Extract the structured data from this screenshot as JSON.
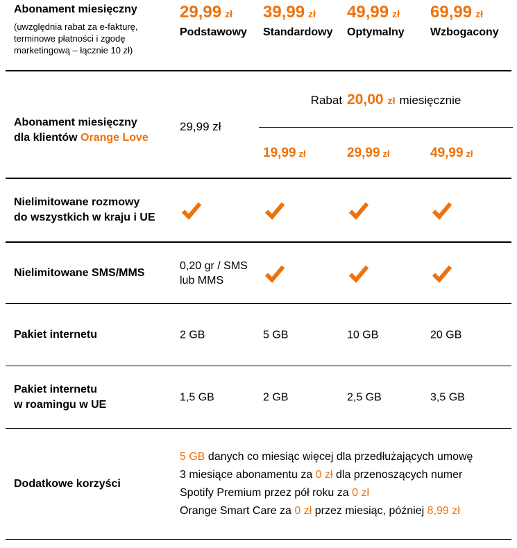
{
  "colors": {
    "accent": "#ee720c",
    "text": "#000000",
    "divider": "#000000",
    "background": "#ffffff"
  },
  "header": {
    "label": {
      "title": "Abonament miesięczny",
      "note": "(uwzględnia rabat za e-fakturę, terminowe płatności i zgodę marketingową – łącznie 10 zł)"
    },
    "plans": [
      {
        "price": "29,99",
        "currency": "zł",
        "name": "Podstawowy"
      },
      {
        "price": "39,99",
        "currency": "zł",
        "name": "Standardowy"
      },
      {
        "price": "49,99",
        "currency": "zł",
        "name": "Optymalny"
      },
      {
        "price": "69,99",
        "currency": "zł",
        "name": "Wzbogacony"
      }
    ]
  },
  "orange_love": {
    "label_line1": "Abonament miesięczny",
    "label_line2_prefix": "dla klientów ",
    "label_line2_highlight": "Orange Love",
    "base_price": "29,99 zł",
    "rabat": {
      "prefix": "Rabat",
      "amount": "20,00",
      "currency": "zł",
      "suffix": "miesięcznie"
    },
    "discounted": [
      {
        "price": "19,99",
        "currency": "zł"
      },
      {
        "price": "29,99",
        "currency": "zł"
      },
      {
        "price": "49,99",
        "currency": "zł"
      }
    ]
  },
  "features": [
    {
      "label": "Nielimitowane rozmowy\ndo wszystkich w kraju i UE",
      "cells": [
        {
          "type": "check"
        },
        {
          "type": "check"
        },
        {
          "type": "check"
        },
        {
          "type": "check"
        }
      ]
    },
    {
      "label": "Nielimitowane SMS/MMS",
      "cells": [
        {
          "type": "text",
          "text": "0,20 gr / SMS\nlub MMS"
        },
        {
          "type": "check"
        },
        {
          "type": "check"
        },
        {
          "type": "check"
        }
      ]
    },
    {
      "label": "Pakiet internetu",
      "cells": [
        {
          "type": "text",
          "text": "2 GB"
        },
        {
          "type": "text",
          "text": "5 GB"
        },
        {
          "type": "text",
          "text": "10 GB"
        },
        {
          "type": "text",
          "text": "20 GB"
        }
      ]
    },
    {
      "label": "Pakiet internetu\nw roamingu w UE",
      "cells": [
        {
          "type": "text",
          "text": "1,5 GB"
        },
        {
          "type": "text",
          "text": "2 GB"
        },
        {
          "type": "text",
          "text": "2,5 GB"
        },
        {
          "type": "text",
          "text": "3,5 GB"
        }
      ]
    }
  ],
  "benefits": {
    "label": "Dodatkowe korzyści",
    "lines": [
      [
        {
          "text": "5 GB",
          "orange": true
        },
        {
          "text": " danych co miesiąc więcej dla przedłużających umowę",
          "orange": false
        }
      ],
      [
        {
          "text": "3 miesiące abonamentu za ",
          "orange": false
        },
        {
          "text": "0 zł",
          "orange": true
        },
        {
          "text": " dla przenoszących numer",
          "orange": false
        }
      ],
      [
        {
          "text": "Spotify Premium przez pół roku za ",
          "orange": false
        },
        {
          "text": "0 zł",
          "orange": true
        }
      ],
      [
        {
          "text": "Orange Smart Care za ",
          "orange": false
        },
        {
          "text": "0 zł",
          "orange": true
        },
        {
          "text": " przez miesiąc, później ",
          "orange": false
        },
        {
          "text": "8,99 zł",
          "orange": true
        }
      ]
    ]
  }
}
